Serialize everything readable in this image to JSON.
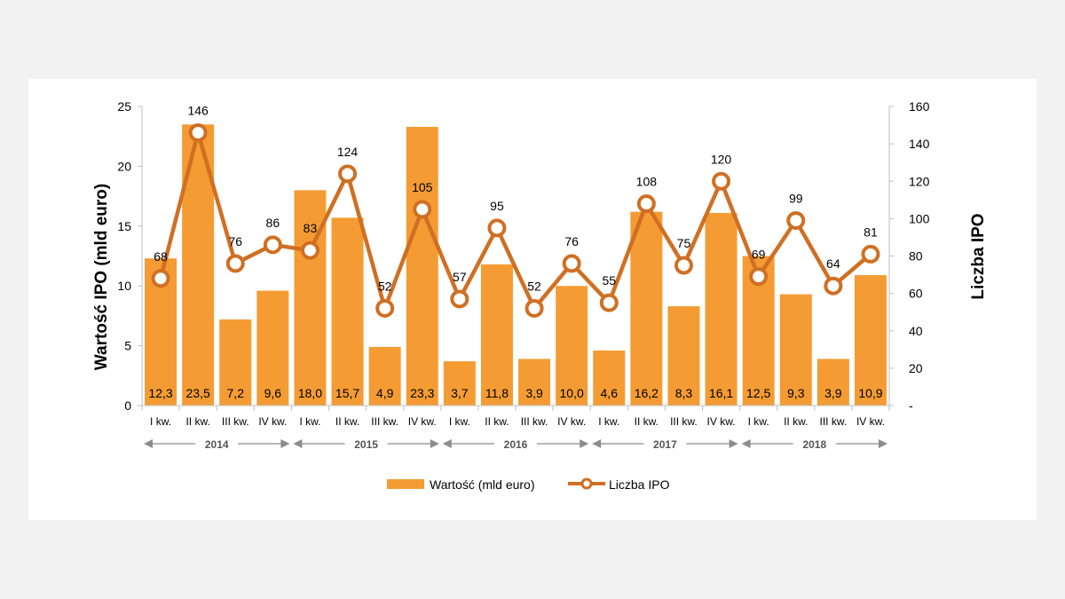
{
  "chart_data": {
    "type": "bar+line",
    "categories": [
      "I kw.",
      "II kw.",
      "III kw.",
      "IV kw.",
      "I kw.",
      "II kw.",
      "III kw.",
      "IV kw.",
      "I kw.",
      "II kw.",
      "III kw.",
      "IV kw.",
      "I kw.",
      "II kw.",
      "III kw.",
      "IV kw.",
      "I kw.",
      "II kw.",
      "III kw.",
      "IV kw."
    ],
    "years": [
      "2014",
      "2015",
      "2016",
      "2017",
      "2018"
    ],
    "series": [
      {
        "name": "Wartość (mld euro)",
        "type": "bar",
        "axis": "left",
        "values": [
          12.3,
          23.5,
          7.2,
          9.6,
          18.0,
          15.7,
          4.9,
          23.3,
          3.7,
          11.8,
          3.9,
          10.0,
          4.6,
          16.2,
          8.3,
          16.1,
          12.5,
          9.3,
          3.9,
          10.9
        ],
        "labels": [
          "12,3",
          "23,5",
          "7,2",
          "9,6",
          "18,0",
          "15,7",
          "4,9",
          "23,3",
          "3,7",
          "11,8",
          "3,9",
          "10,0",
          "4,6",
          "16,2",
          "8,3",
          "16,1",
          "12,5",
          "9,3",
          "3,9",
          "10,9"
        ]
      },
      {
        "name": "Liczba IPO",
        "type": "line",
        "axis": "right",
        "values": [
          68,
          146,
          76,
          86,
          83,
          124,
          52,
          105,
          57,
          95,
          52,
          76,
          55,
          108,
          75,
          120,
          69,
          99,
          64,
          81
        ],
        "labels": [
          "68",
          "146",
          "76",
          "86",
          "83",
          "124",
          "52",
          "105",
          "57",
          "95",
          "52",
          "76",
          "55",
          "108",
          "75",
          "120",
          "69",
          "99",
          "64",
          "81"
        ]
      }
    ],
    "ylabel_left": "Wartość IPO (mld euro)",
    "ylabel_right": "Liczba IPO",
    "ylim_left": [
      0,
      25
    ],
    "ylim_right": [
      0,
      160
    ],
    "yticks_left": [
      "0",
      "5",
      "10",
      "15",
      "20",
      "25"
    ],
    "yticks_right": [
      "-",
      "20",
      "40",
      "60",
      "80",
      "100",
      "120",
      "140",
      "160"
    ],
    "legend_position": "bottom",
    "colors": {
      "bar": "#f49c33",
      "line": "#d06f23",
      "axis_text": "#000000",
      "arrow": "#8c8c8c"
    }
  }
}
